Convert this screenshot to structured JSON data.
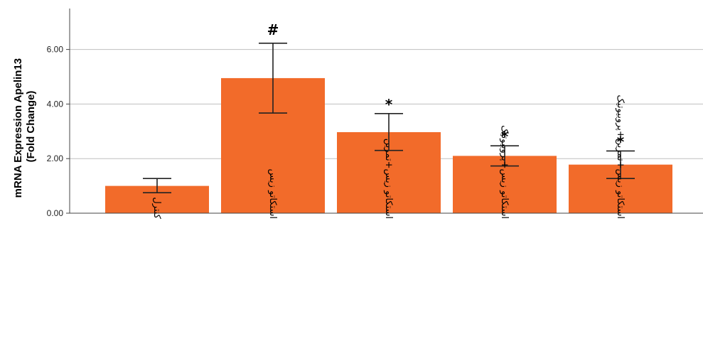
{
  "chart_data": {
    "type": "bar",
    "title": "",
    "xlabel": "",
    "ylabel": [
      "mRNA Expression Apelin13",
      "(Fold Change)"
    ],
    "ylim": [
      0,
      7.5
    ],
    "yticks": [
      "0.00",
      "2.00",
      "4.00",
      "6.00"
    ],
    "ytick_values": [
      0,
      2,
      4,
      6
    ],
    "grid": true,
    "legend": "none",
    "categories": [
      "کنترل",
      "استکاتو زیس",
      "استکاتو زیس+تمرین",
      "استکاتو زیس+پروبیوتیک",
      "استکاتو زیس+تمرین+پروبیوتیک"
    ],
    "values": [
      1.0,
      4.95,
      2.97,
      2.1,
      1.78
    ],
    "error_low": [
      0.75,
      3.67,
      2.3,
      1.73,
      1.27
    ],
    "error_high": [
      1.27,
      6.23,
      3.65,
      2.47,
      2.28
    ],
    "annotations": [
      "",
      "#",
      "*",
      "*",
      "*"
    ],
    "bar_color": "#f26b2a"
  }
}
